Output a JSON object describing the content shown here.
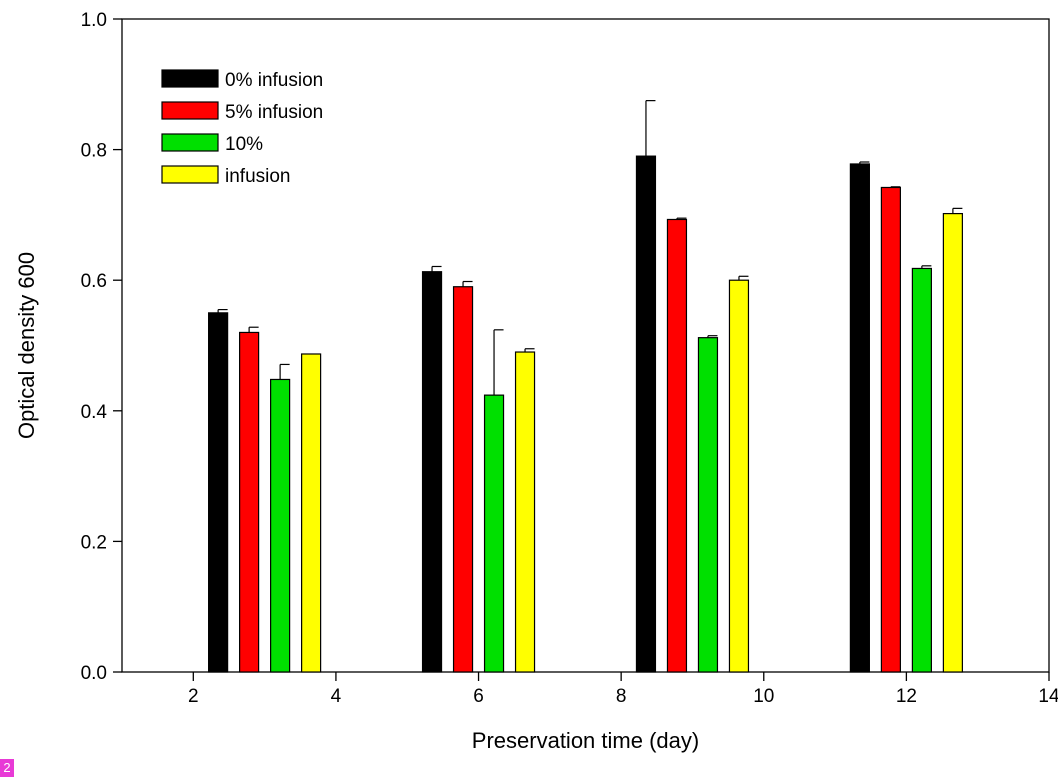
{
  "chart_data": {
    "type": "bar",
    "xlabel": "Preservation time (day)",
    "ylabel": "Optical density 600",
    "xlim": [
      1,
      14
    ],
    "ylim": [
      0,
      1.0
    ],
    "xticks": [
      2,
      4,
      6,
      8,
      10,
      12,
      14
    ],
    "yticks": [
      0.0,
      0.2,
      0.4,
      0.6,
      0.8,
      1.0
    ],
    "ytick_labels": [
      "0.0",
      "0.2",
      "0.4",
      "0.6",
      "0.8",
      "1.0"
    ],
    "grid": false,
    "legend_position": "top-left",
    "categories": [
      3,
      6,
      9,
      12
    ],
    "series": [
      {
        "name": "0% infusion",
        "color": "#000000",
        "values": [
          0.55,
          0.613,
          0.79,
          0.778
        ],
        "errors": [
          0.005,
          0.008,
          0.085,
          0.003
        ]
      },
      {
        "name": "5% infusion",
        "color": "#ff0000",
        "values": [
          0.52,
          0.59,
          0.693,
          0.742
        ],
        "errors": [
          0.008,
          0.008,
          0.002,
          0.001
        ]
      },
      {
        "name": "10%",
        "color": "#00e000",
        "values": [
          0.448,
          0.424,
          0.512,
          0.618
        ],
        "errors": [
          0.023,
          0.1,
          0.003,
          0.004
        ]
      },
      {
        "name": "infusion",
        "color": "#ffff00",
        "values": [
          0.487,
          0.49,
          0.6,
          0.702
        ],
        "errors": [
          0.0,
          0.005,
          0.006,
          0.008
        ]
      }
    ]
  },
  "badge": "2"
}
